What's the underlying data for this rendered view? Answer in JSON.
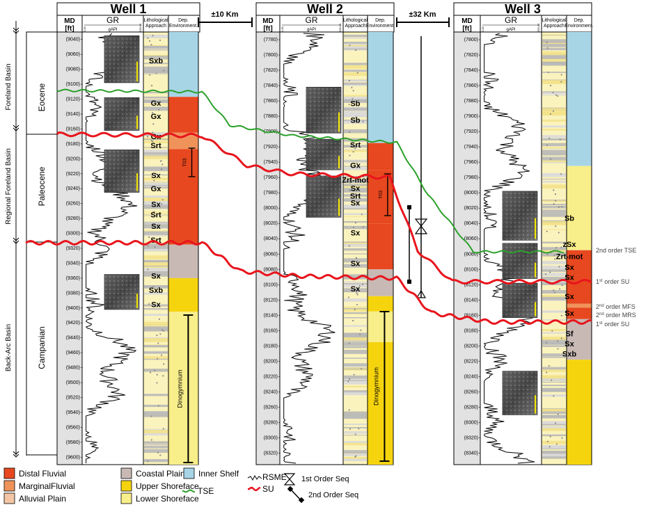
{
  "wells": [
    {
      "title": "Well 1",
      "md_label": "MD",
      "md_unit": "[ft]",
      "gr_label": "GR",
      "gr_unit": "gAPI",
      "gr_min": "0.00",
      "gr_max": "200.00",
      "litho_label": [
        "Lithological",
        "Approach"
      ],
      "dep_label": [
        "Dep.",
        "Environment."
      ],
      "depths": [
        "(9040)",
        "(9060)",
        "(9080)",
        "(9100)",
        "(9120)",
        "(9140)",
        "(9160)",
        "(9180)",
        "(9200)",
        "(9220)",
        "(9240)",
        "(9260)",
        "(9280)",
        "(9300)",
        "(9320)",
        "(9340)",
        "(9360)",
        "(9380)",
        "(9400)",
        "(9420)",
        "(9440)",
        "(9460)",
        "(9480)",
        "(9500)",
        "(9520)",
        "(9540)",
        "(9560)",
        "(9580)",
        "(9600)"
      ],
      "facies": [
        {
          "text": "Sxb",
          "depth": 9068
        },
        {
          "text": "Gx",
          "depth": 9125
        },
        {
          "text": "Gx",
          "depth": 9143
        },
        {
          "text": "Gx",
          "depth": 9170
        },
        {
          "text": "Srt",
          "depth": 9182
        },
        {
          "text": "Sx",
          "depth": 9222
        },
        {
          "text": "Gx",
          "depth": 9240
        },
        {
          "text": "Sx",
          "depth": 9261
        },
        {
          "text": "Srt",
          "depth": 9275
        },
        {
          "text": "Sx",
          "depth": 9290
        },
        {
          "text": "Srt",
          "depth": 9309
        },
        {
          "text": "Sx",
          "depth": 9357
        },
        {
          "text": "Sxb",
          "depth": 9376
        },
        {
          "text": "Sx",
          "depth": 9395
        }
      ],
      "label_t03": "T03",
      "label_dino": "Dinogymnium"
    },
    {
      "title": "Well 2",
      "md_label": "MD",
      "md_unit": "[ft]",
      "gr_label": "GR",
      "gr_unit": "gAPI",
      "gr_min": "0.00",
      "gr_max": "200.00",
      "litho_label": [
        "Lithological",
        "Approach"
      ],
      "dep_label": [
        "Dep.",
        "Environment."
      ],
      "depths": [
        "(7780)",
        "(7800)",
        "(7820)",
        "(7840)",
        "(7860)",
        "(7880)",
        "(7900)",
        "(7920)",
        "(7940)",
        "(7960)",
        "(7980)",
        "(8000)",
        "(8020)",
        "(8040)",
        "(8060)",
        "(8080)",
        "(8100)",
        "(8120)",
        "(8140)",
        "(8160)",
        "(8180)",
        "(8200)",
        "(8220)",
        "(8240)",
        "(8260)",
        "(8280)",
        "(8300)",
        "(8320)"
      ],
      "facies": [
        {
          "text": "Sb",
          "depth": 7863
        },
        {
          "text": "Sb",
          "depth": 7885
        },
        {
          "text": "Srt",
          "depth": 7917
        },
        {
          "text": "Gx",
          "depth": 7944
        },
        {
          "text": "Zrt-mot",
          "depth": 7963
        },
        {
          "text": "Sx",
          "depth": 7974
        },
        {
          "text": "Srt",
          "depth": 7984
        },
        {
          "text": "Sx",
          "depth": 7993
        },
        {
          "text": "Sx",
          "depth": 8032
        },
        {
          "text": "Sx",
          "depth": 8072
        },
        {
          "text": "Sx",
          "depth": 8105
        }
      ],
      "label_t03": "T03",
      "label_dino": "Dinogymnium"
    },
    {
      "title": "Well 3",
      "md_label": "MD",
      "md_unit": "[ft]",
      "gr_label": "GR",
      "gr_unit": "gAPI",
      "gr_min": "0.00",
      "gr_max": "200.00",
      "litho_label": [
        "Lithological",
        "Approach"
      ],
      "dep_label": [
        "Dep.",
        "Environment."
      ],
      "depths": [
        "(7800)",
        "(7820)",
        "(7840)",
        "(7860)",
        "(7880)",
        "(7900)",
        "(7920)",
        "(7940)",
        "(7960)",
        "(7980)",
        "(8000)",
        "(8020)",
        "(8040)",
        "(8060)",
        "(8080)",
        "(8100)",
        "(8120)",
        "(8140)",
        "(8160)",
        "(8180)",
        "(8200)",
        "(8220)",
        "(8240)",
        "(8260)",
        "(8280)",
        "(8300)",
        "(8320)",
        "(8340)"
      ],
      "facies": [
        {
          "text": "Sb",
          "depth": 8033
        },
        {
          "text": "zSx",
          "depth": 8067
        },
        {
          "text": "Zrt-mot",
          "depth": 8083
        },
        {
          "text": "Sx",
          "depth": 8097
        },
        {
          "text": "Sx",
          "depth": 8110
        },
        {
          "text": "Sx",
          "depth": 8135
        },
        {
          "text": "Sx",
          "depth": 8157
        },
        {
          "text": "Sf",
          "depth": 8184
        },
        {
          "text": "Sx",
          "depth": 8197
        },
        {
          "text": "Sxb",
          "depth": 8210
        }
      ]
    }
  ],
  "distances": [
    "±10 Km",
    "±32 Km"
  ],
  "left_axis": {
    "basins": [
      "Foreland Basin",
      "Regional Foreland Basin",
      "Back-Arc Basin"
    ],
    "epochs": [
      "Eocene",
      "Paleocene",
      "Campanian"
    ]
  },
  "right_labels": [
    {
      "pre": "2nd order TSE",
      "sup": "",
      "post": ""
    },
    {
      "pre": "1",
      "sup": "st",
      "post": " order SU"
    },
    {
      "pre": "2",
      "sup": "nd",
      "post": " order MFS"
    },
    {
      "pre": "2",
      "sup": "nd",
      "post": " order MRS"
    },
    {
      "pre": "1",
      "sup": "st",
      "post": " order SU"
    }
  ],
  "legend": {
    "env": [
      {
        "label": "Distal Fluvial",
        "color": "#e8481f"
      },
      {
        "label": "MarginalFluvial",
        "color": "#f0935a"
      },
      {
        "label": "Alluvial Plain",
        "color": "#f4c6a6"
      },
      {
        "label": "Coastal Plain",
        "color": "#c8b9b5"
      },
      {
        "label": "Upper Shoreface",
        "color": "#f5d40e"
      },
      {
        "label": "Lower Shoreface",
        "color": "#f8ee8a"
      },
      {
        "label": "Inner Shelf",
        "color": "#a8d5e6"
      }
    ],
    "tse_label": "TSE",
    "rsme_label": "RSME",
    "su_label": "SU",
    "seq1_label": "1st Order Seq",
    "seq2_label": "2nd Order Seq"
  },
  "colors": {
    "tse": "#2aa02a",
    "su": "#e8141c",
    "inner_shelf": "#a8d5e6",
    "distal_fluvial": "#e8481f",
    "marginal_fluvial": "#f0935a",
    "coastal_plain": "#c8b9b5",
    "upper_shoreface": "#f5d40e",
    "lower_shoreface": "#f8ee8a",
    "md_track": "#e2e2e2",
    "litho_base": "#fbf3bd"
  }
}
